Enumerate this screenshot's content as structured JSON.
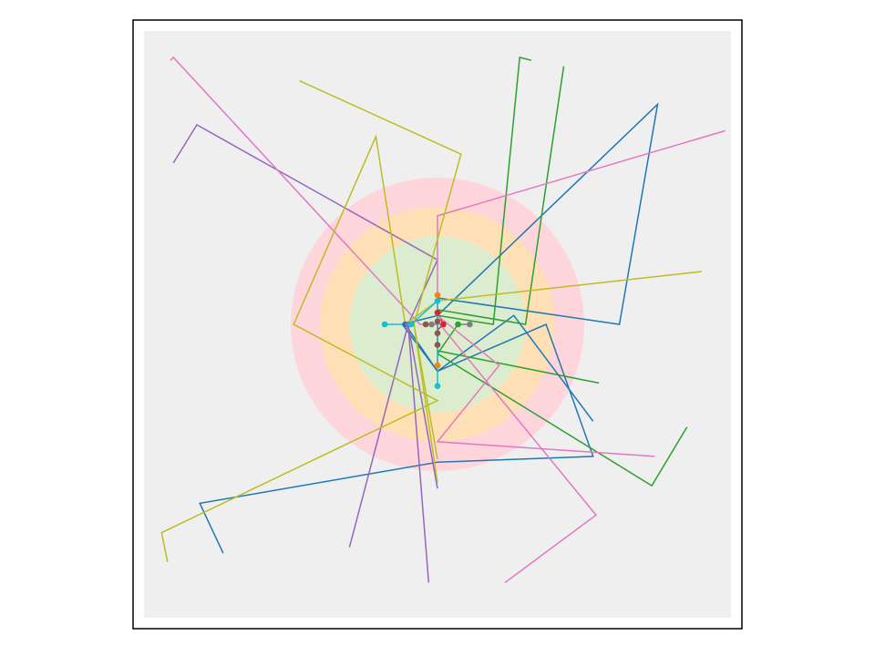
{
  "colors": {
    "background": "#ffffff",
    "frame": "#000000",
    "panel": "#efefef",
    "ring_outer": "#ffd5dc",
    "ring_middle": "#ffdfb5",
    "ring_inner": "#dcecce"
  },
  "chart_data": {
    "type": "line",
    "title": "",
    "xlabel": "",
    "ylabel": "",
    "grid": false,
    "legend": "none",
    "axes_visible": false,
    "xlim": [
      -1,
      1
    ],
    "ylim": [
      -1,
      1
    ],
    "rings": [
      {
        "name": "outer",
        "radius": 0.5,
        "color": "#ffd5dc"
      },
      {
        "name": "middle",
        "radius": 0.4,
        "color": "#ffdfb5"
      },
      {
        "name": "inner",
        "radius": 0.3,
        "color": "#dcecce"
      }
    ],
    "series": [
      {
        "color": "#1f77b4",
        "points": [
          [
            -0.11,
            0.0
          ],
          [
            0.0,
            -0.16
          ],
          [
            0.37,
            0.0
          ],
          [
            0.53,
            -0.45
          ],
          [
            0.0,
            -0.47
          ],
          [
            -0.81,
            -0.61
          ],
          [
            -0.73,
            -0.78
          ]
        ]
      },
      {
        "color": "#1f77b4",
        "points": [
          [
            0.0,
            0.09
          ],
          [
            0.62,
            0.0
          ],
          [
            0.75,
            0.75
          ],
          [
            0.0,
            0.03
          ],
          [
            -0.12,
            0.0
          ],
          [
            0.0,
            -0.16
          ],
          [
            0.26,
            0.03
          ],
          [
            0.53,
            -0.33
          ]
        ]
      },
      {
        "color": "#ff7f0e",
        "points": [
          [
            0.0,
            0.1
          ],
          [
            0.0,
            -0.14
          ]
        ]
      },
      {
        "color": "#2ca02c",
        "points": [
          [
            0.0,
            0.03
          ],
          [
            0.19,
            0.0
          ],
          [
            0.28,
            0.91
          ],
          [
            0.32,
            0.9
          ]
        ]
      },
      {
        "color": "#2ca02c",
        "points": [
          [
            0.0,
            0.05
          ],
          [
            0.3,
            0.0
          ],
          [
            0.43,
            0.88
          ]
        ]
      },
      {
        "color": "#2ca02c",
        "points": [
          [
            0.0,
            -0.09
          ],
          [
            0.55,
            -0.2
          ]
        ]
      },
      {
        "color": "#2ca02c",
        "points": [
          [
            0.07,
            0.0
          ],
          [
            0.0,
            -0.1
          ],
          [
            0.73,
            -0.55
          ],
          [
            0.85,
            -0.35
          ]
        ]
      },
      {
        "color": "#d62728",
        "points": [
          [
            0.0,
            0.04
          ],
          [
            0.02,
            0.0
          ],
          [
            0.0,
            -0.02
          ]
        ]
      },
      {
        "color": "#9467bd",
        "points": [
          [
            -0.1,
            0.0
          ],
          [
            0.0,
            0.22
          ],
          [
            -0.82,
            0.68
          ],
          [
            -0.9,
            0.55
          ]
        ]
      },
      {
        "color": "#9467bd",
        "points": [
          [
            0.0,
            -0.56
          ],
          [
            -0.1,
            0.0
          ],
          [
            -0.03,
            -0.88
          ]
        ]
      },
      {
        "color": "#9467bd",
        "points": [
          [
            0.0,
            -0.56
          ],
          [
            0.0,
            -0.56
          ]
        ]
      },
      {
        "color": "#9467bd",
        "points": [
          [
            -0.3,
            -0.76
          ],
          [
            -0.1,
            0.0
          ]
        ]
      },
      {
        "color": "#8c564b",
        "points": [
          [
            -0.04,
            0.0
          ],
          [
            -0.01,
            0.0
          ]
        ]
      },
      {
        "color": "#8c564b",
        "points": [
          [
            0.0,
            0.01
          ],
          [
            0.0,
            -0.03
          ],
          [
            0.0,
            -0.07
          ]
        ]
      },
      {
        "color": "#e377c2",
        "points": [
          [
            0.0,
            0.37
          ],
          [
            0.98,
            0.66
          ],
          [
            0.0,
            0.37
          ],
          [
            0.0,
            0.0
          ],
          [
            -0.06,
            0.0
          ],
          [
            -0.9,
            0.91
          ],
          [
            -0.91,
            0.9
          ]
        ]
      },
      {
        "color": "#e377c2",
        "points": [
          [
            0.0,
            0.03
          ],
          [
            0.21,
            -0.14
          ],
          [
            0.0,
            -0.4
          ],
          [
            0.74,
            -0.45
          ]
        ]
      },
      {
        "color": "#e377c2",
        "points": [
          [
            0.0,
            0.01
          ],
          [
            0.54,
            -0.65
          ],
          [
            0.23,
            -0.88
          ]
        ]
      },
      {
        "color": "#7f7f7f",
        "points": [
          [
            0.11,
            0.0
          ],
          [
            0.06,
            0.0
          ]
        ]
      },
      {
        "color": "#bcbd22",
        "points": [
          [
            0.0,
            0.08
          ],
          [
            0.9,
            0.18
          ],
          [
            0.0,
            0.08
          ],
          [
            -0.11,
            0.0
          ],
          [
            -0.21,
            0.64
          ],
          [
            -0.49,
            0.0
          ],
          [
            0.0,
            -0.26
          ],
          [
            -0.94,
            -0.71
          ],
          [
            -0.92,
            -0.81
          ]
        ]
      },
      {
        "color": "#bcbd22",
        "points": [
          [
            -0.08,
            0.0
          ],
          [
            0.08,
            0.58
          ],
          [
            -0.47,
            0.83
          ]
        ]
      },
      {
        "color": "#bcbd22",
        "points": [
          [
            0.0,
            -0.46
          ],
          [
            -0.08,
            0.0
          ],
          [
            0.0,
            -0.54
          ]
        ]
      },
      {
        "color": "#17becf",
        "points": [
          [
            -0.18,
            0.0
          ],
          [
            -0.09,
            0.0
          ],
          [
            0.0,
            0.08
          ],
          [
            0.0,
            -0.21
          ]
        ]
      }
    ],
    "markers": [
      {
        "color": "#17becf",
        "x": -0.18,
        "y": 0.0
      },
      {
        "color": "#1f77b4",
        "x": -0.11,
        "y": 0.0
      },
      {
        "color": "#9467bd",
        "x": -0.1,
        "y": 0.0
      },
      {
        "color": "#17becf",
        "x": -0.09,
        "y": 0.0
      },
      {
        "color": "#8c564b",
        "x": -0.04,
        "y": 0.0
      },
      {
        "color": "#7f7f7f",
        "x": -0.02,
        "y": 0.0
      },
      {
        "color": "#d62728",
        "x": 0.02,
        "y": 0.0
      },
      {
        "color": "#2ca02c",
        "x": 0.07,
        "y": 0.0
      },
      {
        "color": "#7f7f7f",
        "x": 0.11,
        "y": 0.0
      },
      {
        "color": "#ff7f0e",
        "x": 0.0,
        "y": 0.1
      },
      {
        "color": "#17becf",
        "x": 0.0,
        "y": 0.08
      },
      {
        "color": "#d62728",
        "x": 0.0,
        "y": 0.04
      },
      {
        "color": "#8c564b",
        "x": 0.0,
        "y": 0.01
      },
      {
        "color": "#8c564b",
        "x": 0.0,
        "y": -0.03
      },
      {
        "color": "#8c564b",
        "x": 0.0,
        "y": -0.07
      },
      {
        "color": "#ff7f0e",
        "x": 0.0,
        "y": -0.14
      },
      {
        "color": "#17becf",
        "x": 0.0,
        "y": -0.21
      }
    ]
  }
}
